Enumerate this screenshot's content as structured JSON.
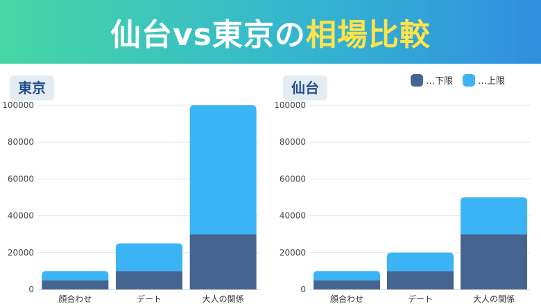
{
  "header": {
    "title_main": "仙台vs東京の",
    "title_highlight": "相場比較"
  },
  "legend": {
    "lower_label": "…下限",
    "upper_label": "…上限"
  },
  "colors": {
    "lower": "#456590",
    "upper": "#3ab4f5",
    "banner_left": "#46d7a3",
    "banner_right": "#2f8fe0",
    "highlight": "#ffe34a"
  },
  "chart_data": [
    {
      "type": "bar",
      "stacked": true,
      "title": "東京",
      "categories": [
        "顔合わせ",
        "デート",
        "大人の関係"
      ],
      "series": [
        {
          "name": "…下限",
          "values": [
            5000,
            10000,
            30000
          ]
        },
        {
          "name": "…上限",
          "values": [
            5000,
            15000,
            70000
          ]
        }
      ],
      "totals": [
        10000,
        25000,
        100000
      ],
      "ylim": [
        0,
        100000
      ],
      "yticks": [
        0,
        20000,
        40000,
        60000,
        80000,
        100000
      ],
      "grid": true,
      "xlabel": "",
      "ylabel": ""
    },
    {
      "type": "bar",
      "stacked": true,
      "title": "仙台",
      "categories": [
        "顔合わせ",
        "デート",
        "大人の関係"
      ],
      "series": [
        {
          "name": "…下限",
          "values": [
            5000,
            10000,
            30000
          ]
        },
        {
          "name": "…上限",
          "values": [
            5000,
            10000,
            20000
          ]
        }
      ],
      "totals": [
        10000,
        20000,
        50000
      ],
      "ylim": [
        0,
        100000
      ],
      "yticks": [
        0,
        20000,
        40000,
        60000,
        80000,
        100000
      ],
      "grid": true,
      "xlabel": "",
      "ylabel": ""
    }
  ]
}
